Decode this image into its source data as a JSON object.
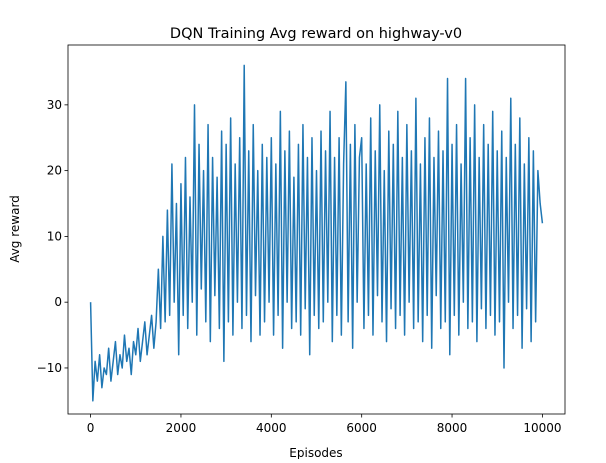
{
  "chart_data": {
    "type": "line",
    "title": "DQN Training Avg reward on highway-v0",
    "x_label": "Episodes",
    "y_label": "Avg reward",
    "color": "#1f77b4",
    "x": [
      0,
      50,
      100,
      150,
      200,
      250,
      300,
      350,
      400,
      450,
      500,
      550,
      600,
      650,
      700,
      750,
      800,
      850,
      900,
      950,
      1000,
      1050,
      1100,
      1150,
      1200,
      1250,
      1300,
      1350,
      1400,
      1450,
      1500,
      1550,
      1600,
      1650,
      1700,
      1750,
      1800,
      1850,
      1900,
      1950,
      2000,
      2050,
      2100,
      2150,
      2200,
      2250,
      2300,
      2350,
      2400,
      2450,
      2500,
      2550,
      2600,
      2650,
      2700,
      2750,
      2800,
      2850,
      2900,
      2950,
      3000,
      3050,
      3100,
      3150,
      3200,
      3250,
      3300,
      3350,
      3400,
      3450,
      3500,
      3550,
      3600,
      3650,
      3700,
      3750,
      3800,
      3850,
      3900,
      3950,
      4000,
      4050,
      4100,
      4150,
      4200,
      4250,
      4300,
      4350,
      4400,
      4450,
      4500,
      4550,
      4600,
      4650,
      4700,
      4750,
      4800,
      4850,
      4900,
      4950,
      5000,
      5050,
      5100,
      5150,
      5200,
      5250,
      5300,
      5350,
      5400,
      5450,
      5500,
      5550,
      5600,
      5650,
      5700,
      5750,
      5800,
      5850,
      5900,
      5950,
      6000,
      6050,
      6100,
      6150,
      6200,
      6250,
      6300,
      6350,
      6400,
      6450,
      6500,
      6550,
      6600,
      6650,
      6700,
      6750,
      6800,
      6850,
      6900,
      6950,
      7000,
      7050,
      7100,
      7150,
      7200,
      7250,
      7300,
      7350,
      7400,
      7450,
      7500,
      7550,
      7600,
      7650,
      7700,
      7750,
      7800,
      7850,
      7900,
      7950,
      8000,
      8050,
      8100,
      8150,
      8200,
      8250,
      8300,
      8350,
      8400,
      8450,
      8500,
      8550,
      8600,
      8650,
      8700,
      8750,
      8800,
      8850,
      8900,
      8950,
      9000,
      9050,
      9100,
      9150,
      9200,
      9250,
      9300,
      9350,
      9400,
      9450,
      9500,
      9550,
      9600,
      9650,
      9700,
      9750,
      9800,
      9850,
      9900,
      9950,
      10000
    ],
    "values": [
      0,
      -15,
      -9,
      -12,
      -8,
      -13,
      -10,
      -11,
      -7,
      -12,
      -9,
      -6,
      -11,
      -8,
      -10,
      -5,
      -9,
      -7,
      -11,
      -6,
      -8,
      -4,
      -9,
      -6,
      -3,
      -8,
      -5,
      -2,
      -7,
      -3,
      5,
      -4,
      10,
      -3,
      14,
      -2,
      21,
      0,
      15,
      -8,
      18,
      -2,
      22,
      -4,
      16,
      0,
      30,
      -5,
      24,
      2,
      20,
      -3,
      27,
      -6,
      22,
      1,
      19,
      -4,
      26,
      -9,
      24,
      -3,
      28,
      -5,
      21,
      0,
      25,
      -4,
      36,
      -2,
      23,
      -6,
      27,
      1,
      20,
      -5,
      24,
      -3,
      22,
      0,
      25,
      -5,
      21,
      -2,
      29,
      -7,
      23,
      0,
      26,
      -4,
      19,
      -3,
      24,
      -5,
      27,
      -1,
      22,
      -8,
      25,
      -2,
      20,
      -4,
      26,
      -3,
      23,
      0,
      29,
      -6,
      22,
      -2,
      25,
      -5,
      21,
      33.5,
      -3,
      24,
      -7,
      27,
      0,
      22,
      25,
      -4,
      21,
      -2,
      28,
      -5,
      23,
      1,
      30,
      -3,
      20,
      -6,
      26,
      -1,
      24,
      -4,
      29,
      -2,
      22,
      -5,
      27,
      0,
      23,
      -4,
      31,
      -3,
      21,
      -6,
      25,
      -2,
      28,
      -7,
      22,
      1,
      26,
      -4,
      23,
      -3,
      34,
      -8,
      24,
      -2,
      27,
      -5,
      21,
      0,
      34,
      -4,
      25,
      -3,
      30,
      -6,
      22,
      -1,
      27,
      -4,
      24,
      -2,
      29,
      -5,
      23,
      -3,
      26,
      -10,
      22,
      0,
      31,
      -4,
      24,
      -2,
      28,
      -7,
      21,
      -1,
      25,
      -6,
      23,
      -3,
      20,
      15,
      12
    ],
    "xlim": [
      -500,
      10500
    ],
    "ylim": [
      -17,
      39.1
    ],
    "xticks": [
      0,
      2000,
      4000,
      6000,
      8000,
      10000
    ],
    "yticks": [
      {
        "value": -10,
        "label": "−10"
      },
      0,
      10,
      20,
      30
    ]
  }
}
